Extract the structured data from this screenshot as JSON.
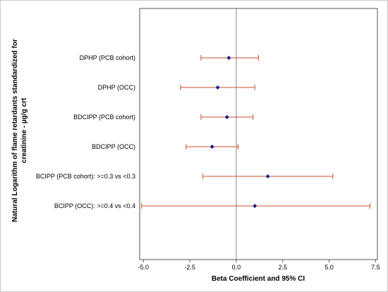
{
  "chart_data": {
    "type": "scatter",
    "title": "",
    "xlabel": "Beta Coefficient and 95% CI",
    "ylabel_lines": [
      "Natural Logarithm of flame retardants standardized for",
      "creatinine - µg/g crt"
    ],
    "xlim": [
      -5.2,
      7.6
    ],
    "xticks": [
      -5.0,
      -2.5,
      0.0,
      2.5,
      5.0,
      7.5
    ],
    "xtick_labels": [
      "-5.0",
      "-2.5",
      "0.0",
      "2.5",
      "5.0",
      "7.5"
    ],
    "reference_line_x": 0,
    "rows": [
      {
        "label": "DPHP (PCB cohort)",
        "estimate": -0.4,
        "lower": -1.9,
        "upper": 1.2
      },
      {
        "label": "DPHP (OCC)",
        "estimate": -1.0,
        "lower": -3.0,
        "upper": 1.0
      },
      {
        "label": "BDCIPP (PCB cohort)",
        "estimate": -0.5,
        "lower": -1.9,
        "upper": 0.9
      },
      {
        "label": "BDCIPP (OCC)",
        "estimate": -1.3,
        "lower": -2.7,
        "upper": 0.1
      },
      {
        "label": "BCIPP (PCB cohort): >=0.3 vs <0.3",
        "estimate": 1.7,
        "lower": -1.8,
        "upper": 5.2
      },
      {
        "label": "BCIPP (OCC):  >=0.4 vs <0.4",
        "estimate": 1.0,
        "lower": -5.1,
        "upper": 7.2
      }
    ],
    "colors": {
      "ci": "#c8502a",
      "point": "#1a1a8c",
      "ref_line": "#888888",
      "axis": "#555555"
    },
    "grid": false
  }
}
